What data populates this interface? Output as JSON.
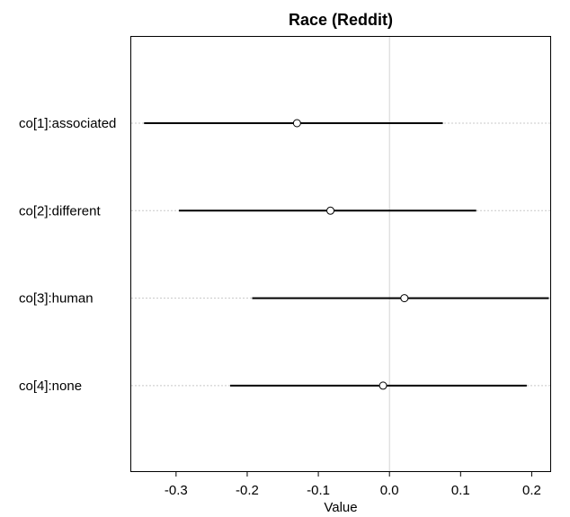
{
  "chart_data": {
    "type": "scatter",
    "title": "Race (Reddit)",
    "xlabel": "Value",
    "ylabel": "",
    "xlim": [
      -0.363,
      0.226
    ],
    "xticks": [
      -0.3,
      -0.2,
      -0.1,
      0.0,
      0.1,
      0.2
    ],
    "xtick_labels": [
      "-0.3",
      "-0.2",
      "-0.1",
      "0.0",
      "0.1",
      "0.2"
    ],
    "reference_line_x": 0.0,
    "grid": "dotted horizontal guides per category",
    "categories": [
      "co[1]:associated",
      "co[2]:different",
      "co[3]:human",
      "co[4]:none"
    ],
    "points": [
      {
        "label": "co[1]:associated",
        "estimate": -0.13,
        "lower": -0.345,
        "upper": 0.075
      },
      {
        "label": "co[2]:different",
        "estimate": -0.083,
        "lower": -0.296,
        "upper": 0.122
      },
      {
        "label": "co[3]:human",
        "estimate": 0.021,
        "lower": -0.193,
        "upper": 0.224
      },
      {
        "label": "co[4]:none",
        "estimate": -0.009,
        "lower": -0.224,
        "upper": 0.193
      }
    ]
  }
}
